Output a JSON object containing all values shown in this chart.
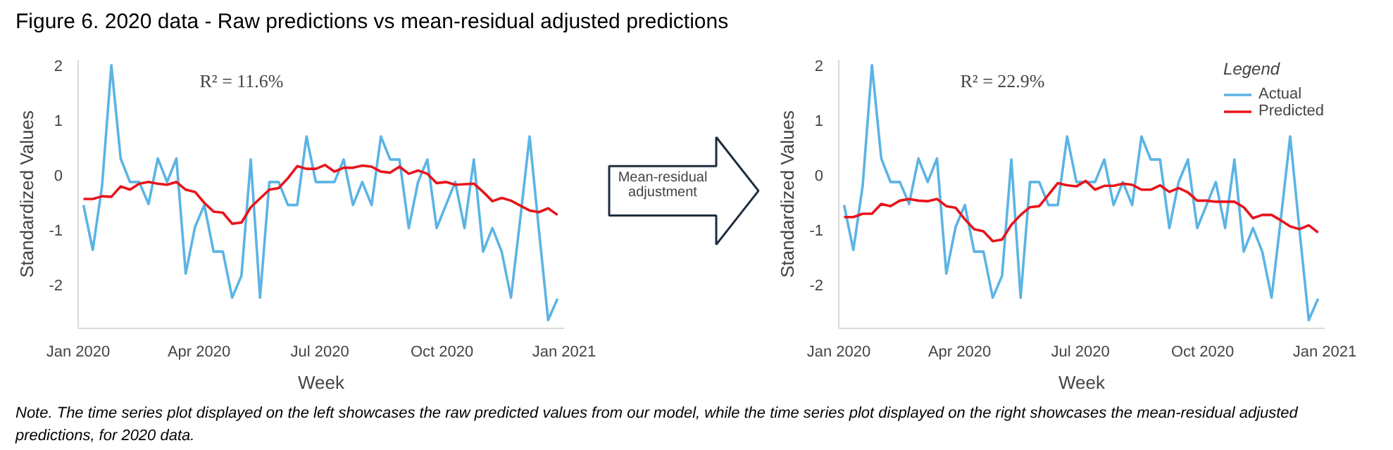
{
  "chart_data": [
    {
      "type": "line",
      "title": "Figure 6. 2020 data - Raw predictions vs mean-residual adjusted predictions",
      "xlabel": "Week",
      "ylabel": "Standardized Values",
      "annotations": [
        "R² = 11.6%",
        "Mean-residual adjustment"
      ],
      "x": [
        "2020-01-05",
        "2020-01-12",
        "2020-01-19",
        "2020-01-26",
        "2020-02-02",
        "2020-02-09",
        "2020-02-16",
        "2020-02-23",
        "2020-03-01",
        "2020-03-08",
        "2020-03-15",
        "2020-03-22",
        "2020-03-29",
        "2020-04-05",
        "2020-04-12",
        "2020-04-19",
        "2020-04-26",
        "2020-05-03",
        "2020-05-10",
        "2020-05-17",
        "2020-05-24",
        "2020-05-31",
        "2020-06-07",
        "2020-06-14",
        "2020-06-21",
        "2020-06-28",
        "2020-07-05",
        "2020-07-12",
        "2020-07-19",
        "2020-07-26",
        "2020-08-02",
        "2020-08-09",
        "2020-08-16",
        "2020-08-23",
        "2020-08-30",
        "2020-09-06",
        "2020-09-13",
        "2020-09-20",
        "2020-09-27",
        "2020-10-04",
        "2020-10-11",
        "2020-10-18",
        "2020-10-25",
        "2020-11-01",
        "2020-11-08",
        "2020-11-15",
        "2020-11-22",
        "2020-11-29",
        "2020-12-06",
        "2020-12-13",
        "2020-12-20",
        "2020-12-27"
      ],
      "series": [
        {
          "color": "#5bb4e5",
          "values": [
            -0.55,
            -1.37,
            -0.2,
            2.0,
            0.3,
            -0.13,
            -0.13,
            -0.53,
            0.3,
            -0.13,
            0.3,
            -1.8,
            -0.95,
            -0.55,
            -1.4,
            -1.4,
            -2.24,
            -1.84,
            0.28,
            -2.24,
            -0.13,
            -0.13,
            -0.55,
            -0.55,
            0.7,
            -0.13,
            -0.13,
            -0.13,
            0.28,
            -0.55,
            -0.13,
            -0.55,
            0.7,
            0.28,
            0.28,
            -0.97,
            -0.13,
            0.28,
            -0.97,
            -0.55,
            -0.13,
            -0.97,
            0.28,
            -1.4,
            -0.97,
            -1.4,
            -2.24,
            -0.8,
            0.7,
            -1.0,
            -2.65,
            -2.26
          ]
        },
        {
          "color": "#e8141c",
          "values": [
            -0.44,
            -0.44,
            -0.39,
            -0.4,
            -0.21,
            -0.27,
            -0.16,
            -0.13,
            -0.16,
            -0.18,
            -0.13,
            -0.27,
            -0.31,
            -0.51,
            -0.67,
            -0.69,
            -0.89,
            -0.87,
            -0.59,
            -0.43,
            -0.27,
            -0.24,
            -0.06,
            0.16,
            0.11,
            0.11,
            0.18,
            0.06,
            0.13,
            0.13,
            0.17,
            0.15,
            0.06,
            0.04,
            0.15,
            0.02,
            0.08,
            0.02,
            -0.15,
            -0.13,
            -0.18,
            -0.17,
            -0.16,
            -0.31,
            -0.48,
            -0.42,
            -0.47,
            -0.56,
            -0.65,
            -0.68,
            -0.61,
            -0.73
          ]
        }
      ],
      "xlim": [
        "2020-01-01",
        "2021-01-01"
      ],
      "xticks": [
        {
          "value": "2020-01-01",
          "label": "Jan 2020"
        },
        {
          "value": "2020-04-01",
          "label": "Apr 2020"
        },
        {
          "value": "2020-07-01",
          "label": "Jul 2020"
        },
        {
          "value": "2020-10-01",
          "label": "Oct 2020"
        },
        {
          "value": "2021-01-01",
          "label": "Jan 2021"
        }
      ],
      "ylim": [
        -2.8,
        2.1
      ],
      "yticks": [
        -2,
        -1,
        0,
        1,
        2
      ]
    },
    {
      "type": "line",
      "xlabel": "Week",
      "ylabel": "Standardized Values",
      "legend": "top right",
      "legend_title": "Legend",
      "annotations": [
        "R² = 22.9%",
        "Note. The time series plot displayed on the left showcases the raw predicted values from our model, while the time series plot displayed on the right showcases the mean-residual adjusted predictions, for 2020 data."
      ],
      "x": [
        "2020-01-05",
        "2020-01-12",
        "2020-01-19",
        "2020-01-26",
        "2020-02-02",
        "2020-02-09",
        "2020-02-16",
        "2020-02-23",
        "2020-03-01",
        "2020-03-08",
        "2020-03-15",
        "2020-03-22",
        "2020-03-29",
        "2020-04-05",
        "2020-04-12",
        "2020-04-19",
        "2020-04-26",
        "2020-05-03",
        "2020-05-10",
        "2020-05-17",
        "2020-05-24",
        "2020-05-31",
        "2020-06-07",
        "2020-06-14",
        "2020-06-21",
        "2020-06-28",
        "2020-07-05",
        "2020-07-12",
        "2020-07-19",
        "2020-07-26",
        "2020-08-02",
        "2020-08-09",
        "2020-08-16",
        "2020-08-23",
        "2020-08-30",
        "2020-09-06",
        "2020-09-13",
        "2020-09-20",
        "2020-09-27",
        "2020-10-04",
        "2020-10-11",
        "2020-10-18",
        "2020-10-25",
        "2020-11-01",
        "2020-11-08",
        "2020-11-15",
        "2020-11-22",
        "2020-11-29",
        "2020-12-06",
        "2020-12-13",
        "2020-12-20",
        "2020-12-27"
      ],
      "series": [
        {
          "name": "Actual",
          "color": "#5bb4e5",
          "values": [
            -0.55,
            -1.37,
            -0.2,
            2.0,
            0.3,
            -0.13,
            -0.13,
            -0.53,
            0.3,
            -0.13,
            0.3,
            -1.8,
            -0.95,
            -0.55,
            -1.4,
            -1.4,
            -2.24,
            -1.84,
            0.28,
            -2.24,
            -0.13,
            -0.13,
            -0.55,
            -0.55,
            0.7,
            -0.13,
            -0.13,
            -0.13,
            0.28,
            -0.55,
            -0.13,
            -0.55,
            0.7,
            0.28,
            0.28,
            -0.97,
            -0.13,
            0.28,
            -0.97,
            -0.55,
            -0.13,
            -0.97,
            0.28,
            -1.4,
            -0.97,
            -1.4,
            -2.24,
            -0.8,
            0.7,
            -1.0,
            -2.65,
            -2.26
          ]
        },
        {
          "name": "Predicted",
          "color": "#e8141c",
          "values": [
            -0.77,
            -0.77,
            -0.71,
            -0.71,
            -0.53,
            -0.57,
            -0.47,
            -0.44,
            -0.47,
            -0.48,
            -0.44,
            -0.57,
            -0.6,
            -0.81,
            -0.99,
            -1.03,
            -1.21,
            -1.18,
            -0.91,
            -0.73,
            -0.59,
            -0.57,
            -0.36,
            -0.15,
            -0.19,
            -0.21,
            -0.11,
            -0.27,
            -0.2,
            -0.2,
            -0.16,
            -0.18,
            -0.27,
            -0.27,
            -0.19,
            -0.31,
            -0.24,
            -0.32,
            -0.47,
            -0.47,
            -0.49,
            -0.49,
            -0.49,
            -0.59,
            -0.79,
            -0.73,
            -0.73,
            -0.83,
            -0.94,
            -0.99,
            -0.92,
            -1.05
          ]
        }
      ],
      "xlim": [
        "2020-01-01",
        "2021-01-01"
      ],
      "xticks": [
        {
          "value": "2020-01-01",
          "label": "Jan 2020"
        },
        {
          "value": "2020-04-01",
          "label": "Apr 2020"
        },
        {
          "value": "2020-07-01",
          "label": "Jul 2020"
        },
        {
          "value": "2020-10-01",
          "label": "Oct 2020"
        },
        {
          "value": "2021-01-01",
          "label": "Jan 2021"
        }
      ],
      "ylim": [
        -2.8,
        2.1
      ],
      "yticks": [
        -2,
        -1,
        0,
        1,
        2
      ]
    }
  ]
}
